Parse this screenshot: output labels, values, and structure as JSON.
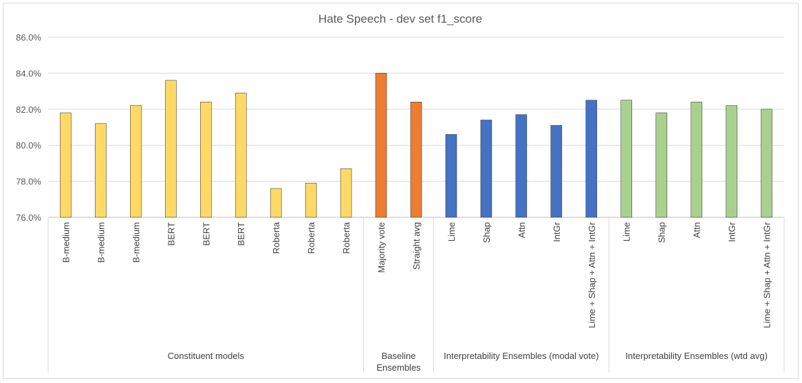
{
  "chart_data": {
    "type": "bar",
    "title": "Hate Speech - dev set f1_score",
    "xlabel": "",
    "ylabel": "",
    "ylim": [
      76.0,
      86.0
    ],
    "yticks": [
      "76.0%",
      "78.0%",
      "80.0%",
      "82.0%",
      "84.0%",
      "86.0%"
    ],
    "grid": true,
    "legend": "none",
    "colors": {
      "constituent": "#ffd966",
      "baseline": "#ed7d31",
      "modal": "#4472c4",
      "weighted": "#a9d18e",
      "bar_edge": "#404040"
    },
    "categories": [
      "B-medium",
      "B-medium",
      "B-medium",
      "BERT",
      "BERT",
      "BERT",
      "Roberta",
      "Roberta",
      "Roberta",
      "Majority vote",
      "Straight avg",
      "Lime",
      "Shap",
      "Attn",
      "IntGr",
      "Lime + Shap + Attn + IntGr",
      "Lime",
      "Shap",
      "Attn",
      "IntGr",
      "Lime + Shap + Attn + IntGr"
    ],
    "values": [
      81.8,
      81.2,
      82.2,
      83.6,
      82.4,
      82.9,
      77.6,
      77.9,
      78.7,
      84.0,
      82.4,
      80.6,
      81.4,
      81.7,
      81.1,
      82.5,
      82.5,
      81.8,
      82.4,
      82.2,
      82.0
    ],
    "groups": [
      {
        "label": "Constituent models",
        "start": 0,
        "count": 9,
        "color_key": "constituent"
      },
      {
        "label": "Baseline Ensembles",
        "label_lines": [
          "Baseline",
          "Ensembles"
        ],
        "start": 9,
        "count": 2,
        "color_key": "baseline"
      },
      {
        "label": "Interpretability Ensembles (modal vote)",
        "start": 11,
        "count": 5,
        "color_key": "modal"
      },
      {
        "label": "Interpretability Ensembles (wtd avg)",
        "start": 16,
        "count": 5,
        "color_key": "weighted"
      }
    ]
  }
}
